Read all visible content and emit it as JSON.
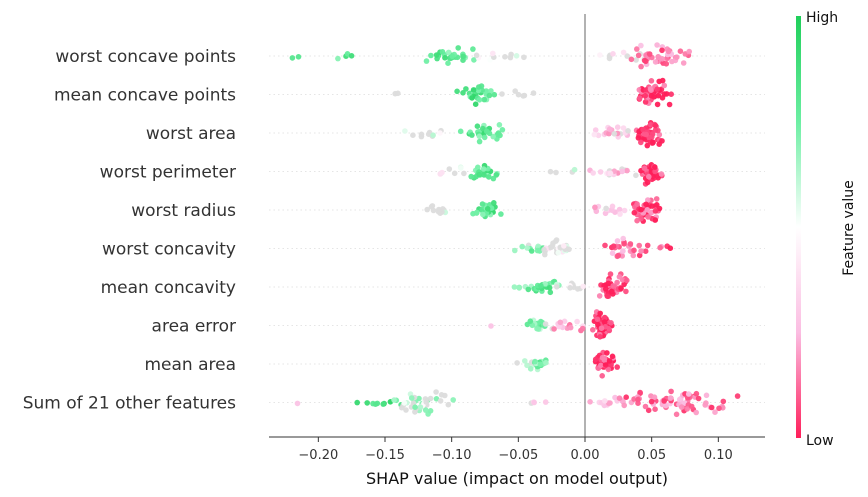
{
  "chart_data": {
    "type": "scatter",
    "subtype": "shap-beeswarm",
    "title": "",
    "xlabel": "SHAP value (impact on model output)",
    "xlim": [
      -0.237,
      0.135
    ],
    "xticks": [
      -0.2,
      -0.15,
      -0.1,
      -0.05,
      0.0,
      0.05,
      0.1
    ],
    "xtick_labels": [
      "−0.20",
      "−0.15",
      "−0.10",
      "−0.05",
      "0.00",
      "0.05",
      "0.10"
    ],
    "zero_line": 0.0,
    "features": [
      "worst concave points",
      "mean concave points",
      "worst area",
      "worst perimeter",
      "worst radius",
      "worst concavity",
      "mean concavity",
      "area error",
      "mean area",
      "Sum of 21 other features"
    ],
    "clusters": [
      [
        {
          "c": -0.22,
          "s": 0.004,
          "n": 2,
          "v": 0.9
        },
        {
          "c": -0.18,
          "s": 0.008,
          "n": 4,
          "v": 0.8
        },
        {
          "c": -0.1,
          "s": 0.012,
          "n": 28,
          "v": 0.78
        },
        {
          "c": -0.06,
          "s": 0.015,
          "n": 10,
          "v": 0.5
        },
        {
          "c": 0.03,
          "s": 0.012,
          "n": 10,
          "v": 0.45
        },
        {
          "c": 0.055,
          "s": 0.012,
          "n": 45,
          "v": 0.15
        }
      ],
      [
        {
          "c": -0.14,
          "s": 0.004,
          "n": 2,
          "v": 0.5
        },
        {
          "c": -0.08,
          "s": 0.008,
          "n": 30,
          "v": 0.82
        },
        {
          "c": -0.05,
          "s": 0.01,
          "n": 6,
          "v": 0.5
        },
        {
          "c": 0.05,
          "s": 0.008,
          "n": 55,
          "v": 0.05
        }
      ],
      [
        {
          "c": -0.12,
          "s": 0.01,
          "n": 10,
          "v": 0.5
        },
        {
          "c": -0.075,
          "s": 0.01,
          "n": 28,
          "v": 0.8
        },
        {
          "c": 0.02,
          "s": 0.012,
          "n": 18,
          "v": 0.3
        },
        {
          "c": 0.048,
          "s": 0.007,
          "n": 50,
          "v": 0.05
        }
      ],
      [
        {
          "c": -0.1,
          "s": 0.008,
          "n": 8,
          "v": 0.5
        },
        {
          "c": -0.075,
          "s": 0.008,
          "n": 25,
          "v": 0.8
        },
        {
          "c": -0.015,
          "s": 0.01,
          "n": 4,
          "v": 0.5
        },
        {
          "c": 0.02,
          "s": 0.012,
          "n": 16,
          "v": 0.3
        },
        {
          "c": 0.048,
          "s": 0.006,
          "n": 45,
          "v": 0.05
        }
      ],
      [
        {
          "c": -0.11,
          "s": 0.01,
          "n": 12,
          "v": 0.5
        },
        {
          "c": -0.072,
          "s": 0.008,
          "n": 24,
          "v": 0.82
        },
        {
          "c": 0.02,
          "s": 0.01,
          "n": 14,
          "v": 0.3
        },
        {
          "c": 0.045,
          "s": 0.007,
          "n": 48,
          "v": 0.08
        }
      ],
      [
        {
          "c": -0.04,
          "s": 0.01,
          "n": 14,
          "v": 0.7
        },
        {
          "c": -0.02,
          "s": 0.008,
          "n": 30,
          "v": 0.5
        },
        {
          "c": 0.03,
          "s": 0.01,
          "n": 30,
          "v": 0.15
        },
        {
          "c": 0.06,
          "s": 0.006,
          "n": 4,
          "v": 0.1
        }
      ],
      [
        {
          "c": -0.045,
          "s": 0.006,
          "n": 6,
          "v": 0.75
        },
        {
          "c": -0.03,
          "s": 0.006,
          "n": 20,
          "v": 0.78
        },
        {
          "c": -0.01,
          "s": 0.008,
          "n": 10,
          "v": 0.5
        },
        {
          "c": 0.022,
          "s": 0.008,
          "n": 42,
          "v": 0.05
        }
      ],
      [
        {
          "c": -0.07,
          "s": 0.004,
          "n": 1,
          "v": 0.3
        },
        {
          "c": -0.035,
          "s": 0.006,
          "n": 20,
          "v": 0.7
        },
        {
          "c": -0.015,
          "s": 0.01,
          "n": 16,
          "v": 0.25
        },
        {
          "c": 0.014,
          "s": 0.005,
          "n": 55,
          "v": 0.02
        }
      ],
      [
        {
          "c": -0.04,
          "s": 0.006,
          "n": 10,
          "v": 0.5
        },
        {
          "c": -0.033,
          "s": 0.005,
          "n": 16,
          "v": 0.72
        },
        {
          "c": 0.014,
          "s": 0.006,
          "n": 40,
          "v": 0.05
        }
      ],
      [
        {
          "c": -0.22,
          "s": 0.004,
          "n": 1,
          "v": 0.3
        },
        {
          "c": -0.155,
          "s": 0.01,
          "n": 10,
          "v": 0.85
        },
        {
          "c": -0.12,
          "s": 0.015,
          "n": 40,
          "v": 0.6
        },
        {
          "c": -0.04,
          "s": 0.008,
          "n": 4,
          "v": 0.4
        },
        {
          "c": 0.02,
          "s": 0.012,
          "n": 14,
          "v": 0.25
        },
        {
          "c": 0.07,
          "s": 0.025,
          "n": 70,
          "v": 0.15
        }
      ]
    ],
    "colorbar": {
      "label": "Feature value",
      "high_label": "High",
      "low_label": "Low",
      "colors": [
        "#1fcf5a",
        "#6cefa3",
        "#ffffff",
        "#fbbde2",
        "#ff1f5a"
      ]
    }
  }
}
